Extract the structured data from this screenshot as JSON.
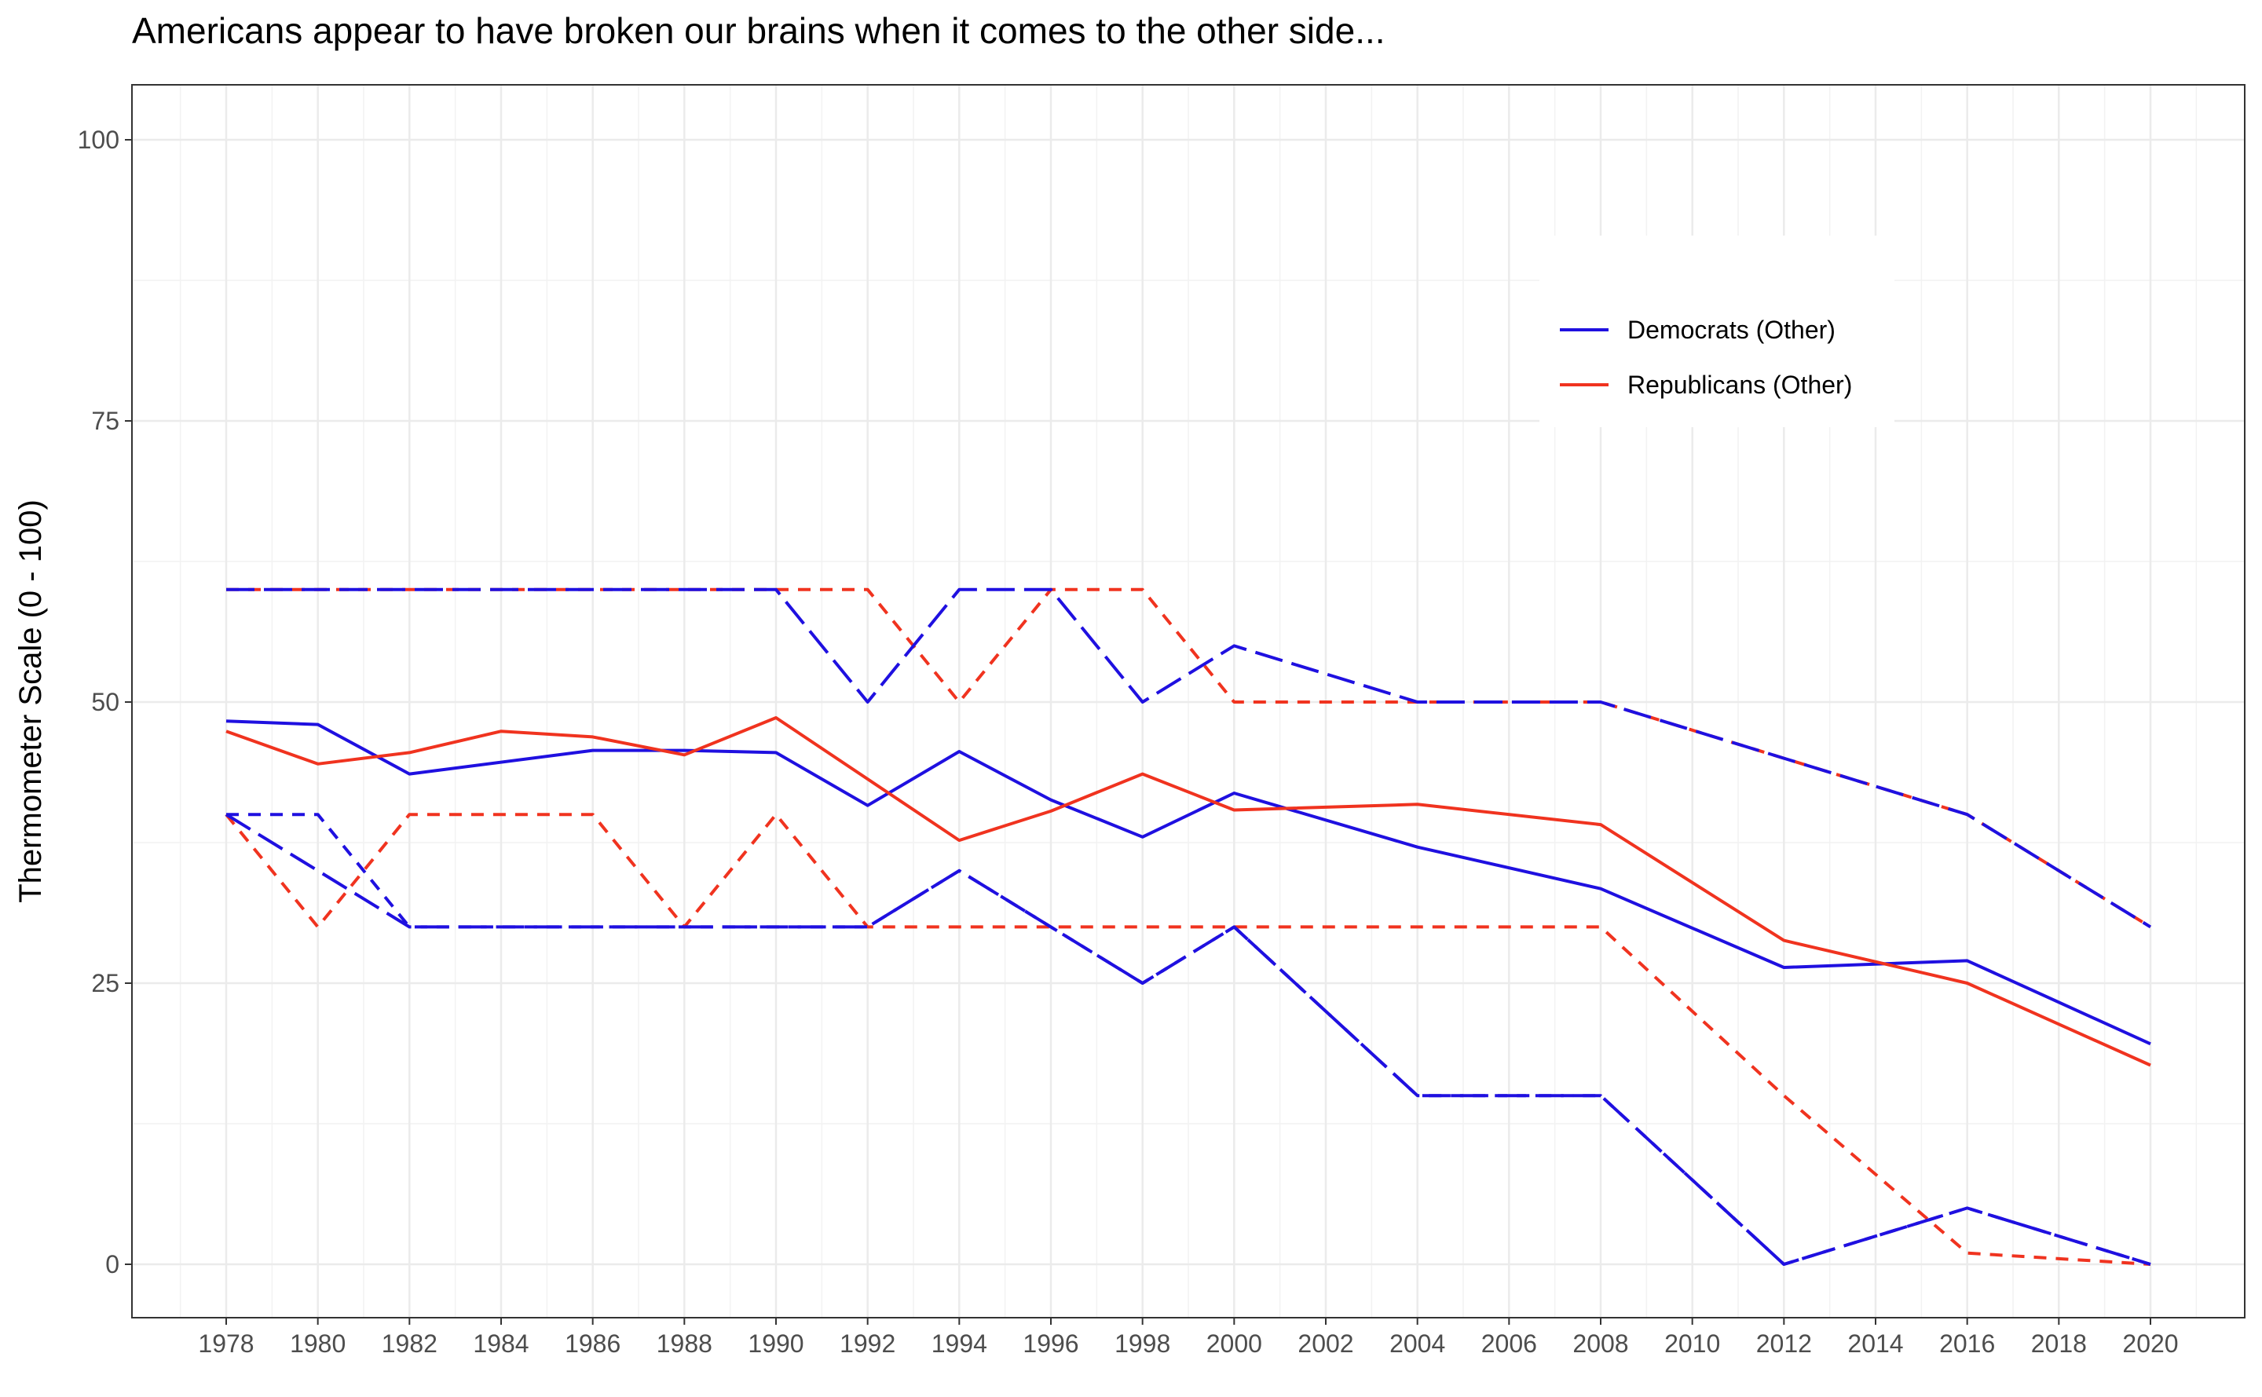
{
  "chart_data": {
    "type": "line",
    "title": "Americans appear to have broken our brains when it comes to the other side...",
    "xlabel": "",
    "ylabel": "Thermometer Scale (0 - 100)",
    "x": [
      1978,
      1980,
      1982,
      1984,
      1986,
      1988,
      1990,
      1992,
      1994,
      1996,
      1998,
      2000,
      2004,
      2008,
      2012,
      2016,
      2020
    ],
    "xticks": [
      1978,
      1980,
      1982,
      1984,
      1986,
      1988,
      1990,
      1992,
      1994,
      1996,
      1998,
      2000,
      2002,
      2004,
      2006,
      2008,
      2010,
      2012,
      2014,
      2016,
      2018,
      2020
    ],
    "yticks": [
      0,
      25,
      50,
      75,
      100
    ],
    "xlim": [
      1978,
      2020
    ],
    "ylim": [
      0,
      100
    ],
    "grid": true,
    "legend_position": "top-right",
    "series": [
      {
        "name": "Democrats (Other)",
        "color": "#1f10e0",
        "style": "solid",
        "values": [
          48.3,
          48.0,
          43.6,
          null,
          45.7,
          45.7,
          45.5,
          40.8,
          45.6,
          41.3,
          38.0,
          41.9,
          37.1,
          33.4,
          26.4,
          27.0,
          19.6
        ]
      },
      {
        "name": "Republicans (Other)",
        "color": "#f0331f",
        "style": "solid",
        "values": [
          47.4,
          44.5,
          45.5,
          47.4,
          46.9,
          45.3,
          48.6,
          null,
          37.7,
          40.3,
          43.6,
          40.4,
          40.9,
          39.1,
          28.8,
          25.0,
          17.7
        ]
      },
      {
        "color": "#f0331f",
        "style": "dashed",
        "values": [
          60,
          60,
          60,
          60,
          60,
          60,
          60,
          60,
          50,
          60,
          60,
          50,
          50,
          50,
          45,
          40,
          30
        ]
      },
      {
        "color": "#1f10e0",
        "style": "longdash",
        "values": [
          60,
          60,
          60,
          60,
          60,
          60,
          60,
          50,
          60,
          60,
          50,
          55,
          50,
          50,
          45,
          40,
          30
        ]
      },
      {
        "color": "#f0331f",
        "style": "dashed",
        "values": [
          40,
          30,
          40,
          40,
          40,
          30,
          40,
          30,
          30,
          30,
          30,
          30,
          30,
          30,
          15,
          1,
          0
        ]
      },
      {
        "color": "#1f10e0",
        "style": "dashed",
        "values": [
          40,
          40,
          30,
          30,
          30,
          30,
          30,
          30,
          35,
          30,
          25,
          30,
          15,
          15,
          0,
          5,
          0
        ]
      },
      {
        "color": "#1f10e0",
        "style": "longdash",
        "values": [
          40,
          35,
          30,
          30,
          30,
          30,
          30,
          30,
          35,
          30,
          25,
          30,
          15,
          15,
          0,
          5,
          0
        ]
      }
    ],
    "legend": [
      "Democrats (Other)",
      "Republicans (Other)"
    ]
  }
}
